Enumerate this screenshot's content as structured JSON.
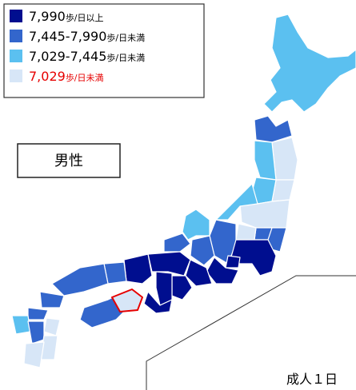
{
  "legend": [
    {
      "range": "7,990",
      "unit": "歩/日以上",
      "color": "#000e8f"
    },
    {
      "range": "7,445-7,990",
      "unit": "歩/日未満",
      "color": "#3366cc"
    },
    {
      "range": "7,029-7,445",
      "unit": "歩/日未満",
      "color": "#5bc0f0"
    },
    {
      "range": "7,029",
      "unit": "歩/日未満",
      "color": "#d7e6f7",
      "text_color": "#e60000"
    }
  ],
  "highlight_color": "#e60000",
  "label": "男性",
  "footnote": "成人１日"
}
